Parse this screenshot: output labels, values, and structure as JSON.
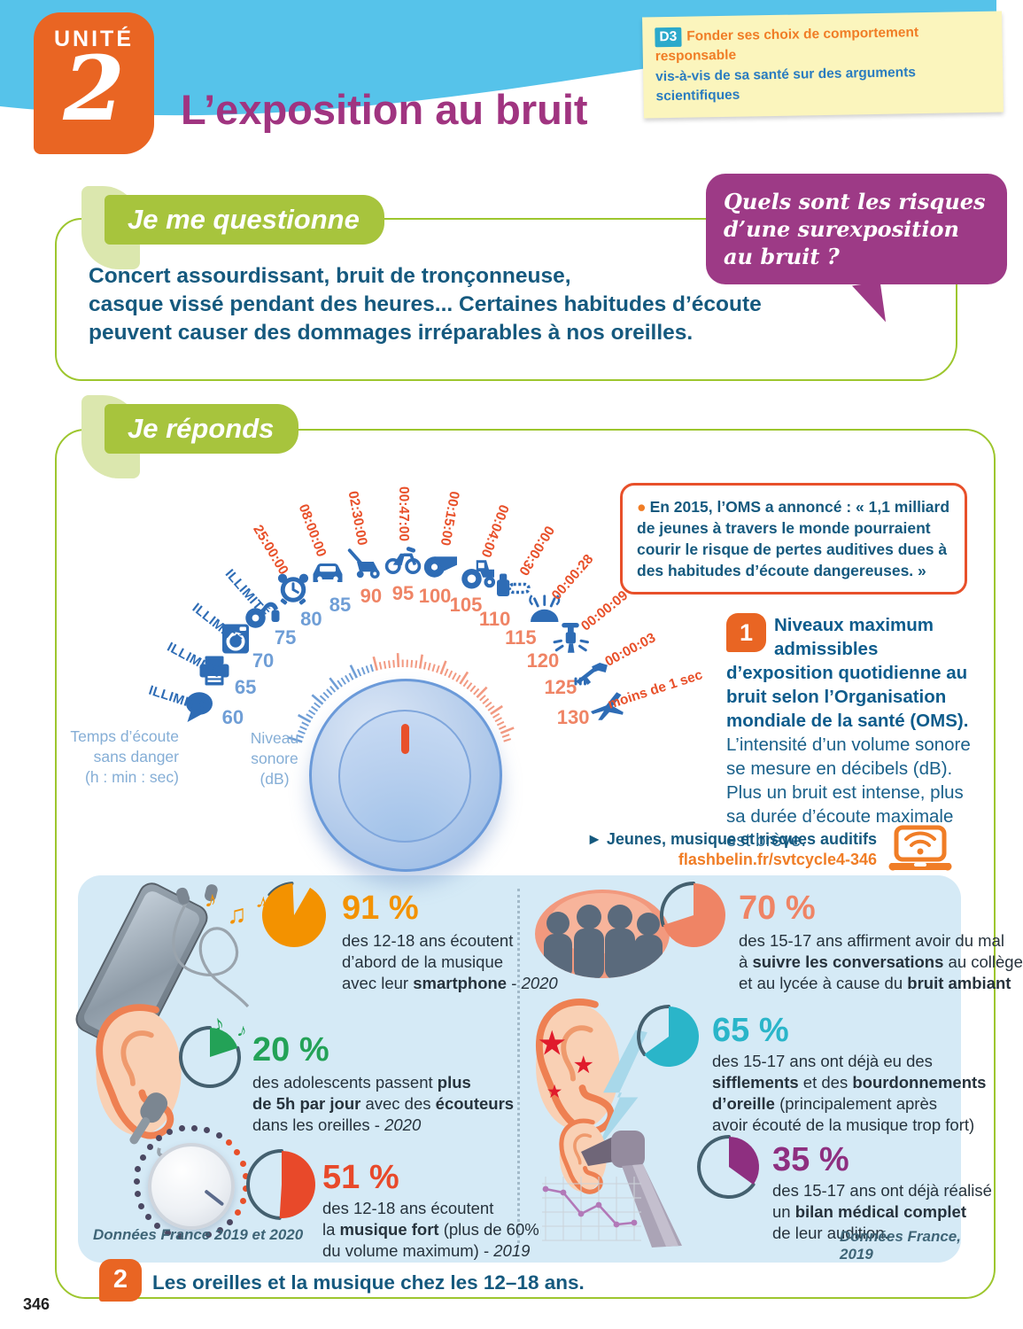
{
  "colors": {
    "orange_accent": "#e96523",
    "title_purple": "#a03480",
    "banner_green": "#a7c43d",
    "frame_green": "#9dc62e",
    "dark_blue": "#15597e",
    "red_orange": "#e8502a",
    "sky_blue": "#56c3ea",
    "panel_blue": "#d5eaf6",
    "bubble_purple": "#9d3a86",
    "gauge_blue": "#2e6cb5",
    "note_yellow": "#fbf5bd"
  },
  "icons": {
    "link_arrow": "►",
    "quote_bullet": "●",
    "music_note_single": "♪",
    "music_note_double": "♫",
    "star": "★"
  },
  "page": {
    "number": "346"
  },
  "header": {
    "unit_label": "UNITÉ",
    "unit_number": "2",
    "title": "L’exposition au bruit",
    "competency": {
      "badge": "D3",
      "line1": "Fonder ses choix de comportement responsable",
      "line2": "vis-à-vis de sa santé sur des arguments scientifiques"
    }
  },
  "question_section": {
    "banner": "Je me questionne",
    "bubble_lines": [
      "Quels sont les risques",
      "d’une surexposition",
      "au bruit ?"
    ],
    "body_lines": [
      "Concert assourdissant, bruit de tronçonneuse,",
      "casque vissé pendant des heures... Certaines habitudes d’écoute",
      "peuvent causer des dommages irréparables à nos oreilles."
    ]
  },
  "answer_section": {
    "banner": "Je réponds",
    "quote": "En 2015, l’OMS a annoncé : « 1,1 milliard de jeunes à travers le monde pourraient courir le risque de pertes auditives dues à des habitudes d’écoute dangereuses. »",
    "figure1": {
      "number": "1",
      "title_bold": "Niveaux maximum admissibles d’exposition quotidienne au bruit selon l’Organisation mondiale de la santé (OMS).",
      "text": " L’intensité d’un volume sonore se mesure en décibels (dB). Plus un bruit est intense, plus sa durée d’écoute maximale est brève."
    },
    "link": {
      "label": "Jeunes, musique et risques auditifs",
      "url": "flashbelin.fr/svtcycle4-346"
    },
    "gauge": {
      "axis_left_lines": [
        "Temps d’écoute",
        "sans danger",
        "(h : min : sec)"
      ],
      "axis_right_lines": [
        "Niveau",
        "sonore",
        "(dB)"
      ],
      "stops": [
        {
          "db": 60,
          "time": "ILLIMITÉ",
          "unlimited": true,
          "icon": "speech-bubble"
        },
        {
          "db": 65,
          "time": "ILLIMITÉ",
          "unlimited": true,
          "icon": "printer"
        },
        {
          "db": 70,
          "time": "ILLIMITÉ",
          "unlimited": true,
          "icon": "washing-machine"
        },
        {
          "db": 75,
          "time": "ILLIMITÉ",
          "unlimited": true,
          "icon": "vacuum-cleaner"
        },
        {
          "db": 80,
          "time": "25:00:00",
          "unlimited": false,
          "icon": "alarm-clock"
        },
        {
          "db": 85,
          "time": "08:00:00",
          "unlimited": false,
          "icon": "car"
        },
        {
          "db": 90,
          "time": "02:30:00",
          "unlimited": false,
          "icon": "lawn-mower"
        },
        {
          "db": 95,
          "time": "00:47:00",
          "unlimited": false,
          "icon": "motorcycle"
        },
        {
          "db": 100,
          "time": "00:15:00",
          "unlimited": false,
          "icon": "whistle"
        },
        {
          "db": 105,
          "time": "00:04:00",
          "unlimited": false,
          "icon": "tractor"
        },
        {
          "db": 110,
          "time": "00:00:30",
          "unlimited": false,
          "icon": "chainsaw"
        },
        {
          "db": 115,
          "time": "00:00:28",
          "unlimited": false,
          "icon": "concert-stage"
        },
        {
          "db": 120,
          "time": "00:00:09",
          "unlimited": false,
          "icon": "jackhammer"
        },
        {
          "db": 125,
          "time": "00:00:03",
          "unlimited": false,
          "icon": "rifle"
        },
        {
          "db": 130,
          "time": "moins de 1 sec",
          "unlimited": false,
          "icon": "jet-plane"
        }
      ]
    }
  },
  "figure2": {
    "number": "2",
    "caption": "Les oreilles et la musique chez les 12–18 ans.",
    "source_left": "Données France 2019 et 2020",
    "source_right": "Données France, 2019",
    "stats": [
      {
        "value": "91 %",
        "pct": 91,
        "color": "#f39200",
        "lines": [
          [
            {
              "t": "des 12-18 ans écoutent"
            }
          ],
          [
            {
              "t": "d’abord de la musique"
            }
          ],
          [
            {
              "t": "avec leur "
            },
            {
              "t": "smartphone",
              "b": true
            },
            {
              "t": " - "
            },
            {
              "t": "2020",
              "i": true
            }
          ]
        ]
      },
      {
        "value": "20 %",
        "pct": 20,
        "color": "#23a257",
        "lines": [
          [
            {
              "t": "des adolescents passent "
            },
            {
              "t": "plus",
              "b": true
            }
          ],
          [
            {
              "t": "de 5h par jour",
              "b": true
            },
            {
              "t": " avec des "
            },
            {
              "t": "écouteurs",
              "b": true
            }
          ],
          [
            {
              "t": "dans les oreilles - "
            },
            {
              "t": "2020",
              "i": true
            }
          ]
        ]
      },
      {
        "value": "51 %",
        "pct": 51,
        "color": "#e8492a",
        "lines": [
          [
            {
              "t": "des 12-18 ans écoutent"
            }
          ],
          [
            {
              "t": "la "
            },
            {
              "t": "musique fort",
              "b": true
            },
            {
              "t": " (plus de 60%"
            }
          ],
          [
            {
              "t": "du volume maximum) - "
            },
            {
              "t": "2019",
              "i": true
            }
          ]
        ]
      },
      {
        "value": "70 %",
        "pct": 70,
        "color": "#ef8465",
        "lines": [
          [
            {
              "t": "des 15-17 ans affirment avoir du mal"
            }
          ],
          [
            {
              "t": "à "
            },
            {
              "t": "suivre les conversations",
              "b": true
            },
            {
              "t": " au collège"
            }
          ],
          [
            {
              "t": "et au lycée à cause du "
            },
            {
              "t": "bruit ambiant",
              "b": true
            }
          ]
        ]
      },
      {
        "value": "65 %",
        "pct": 65,
        "color": "#2ab5c9",
        "lines": [
          [
            {
              "t": "des 15-17 ans ont déjà eu des"
            }
          ],
          [
            {
              "t": "sifflements",
              "b": true
            },
            {
              "t": " et des "
            },
            {
              "t": "bourdonnements",
              "b": true
            }
          ],
          [
            {
              "t": "d’oreille",
              "b": true
            },
            {
              "t": " (principalement après"
            }
          ],
          [
            {
              "t": "avoir écouté de la musique trop fort)"
            }
          ]
        ]
      },
      {
        "value": "35 %",
        "pct": 35,
        "color": "#8e2f80",
        "lines": [
          [
            {
              "t": "des 15-17 ans ont déjà réalisé"
            }
          ],
          [
            {
              "t": "un "
            },
            {
              "t": "bilan médical complet",
              "b": true
            }
          ],
          [
            {
              "t": "de leur audition."
            }
          ]
        ]
      }
    ]
  }
}
